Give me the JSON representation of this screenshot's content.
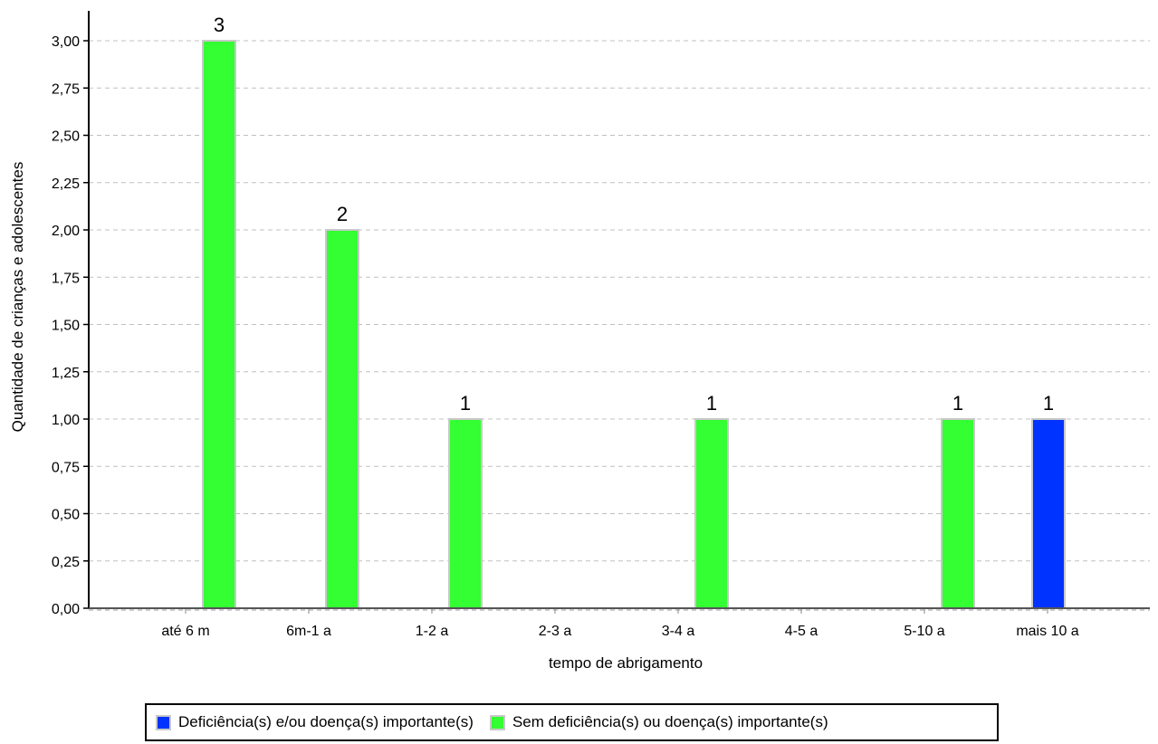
{
  "chart_data": {
    "type": "bar",
    "title": "",
    "xlabel": "tempo de abrigamento",
    "ylabel": "Quantidade de crianças e adolescentes",
    "categories": [
      "até 6 m",
      "6m-1 a",
      "1-2 a",
      "2-3 a",
      "3-4 a",
      "4-5 a",
      "5-10 a",
      "mais 10 a"
    ],
    "series": [
      {
        "name": "Deficiência(s) e/ou doença(s) importante(s)",
        "color": "#0033ff",
        "values": [
          0,
          0,
          0,
          0,
          0,
          0,
          0,
          1
        ]
      },
      {
        "name": "Sem deficiência(s) ou doença(s) importante(s)",
        "color": "#33ff33",
        "values": [
          3,
          2,
          1,
          0,
          1,
          0,
          1,
          0
        ]
      }
    ],
    "ylim": [
      0,
      3
    ],
    "yticks": [
      "0,00",
      "0,25",
      "0,50",
      "0,75",
      "1,00",
      "1,25",
      "1,50",
      "1,75",
      "2,00",
      "2,25",
      "2,50",
      "2,75",
      "3,00"
    ],
    "grid": true,
    "legend_position": "bottom"
  }
}
